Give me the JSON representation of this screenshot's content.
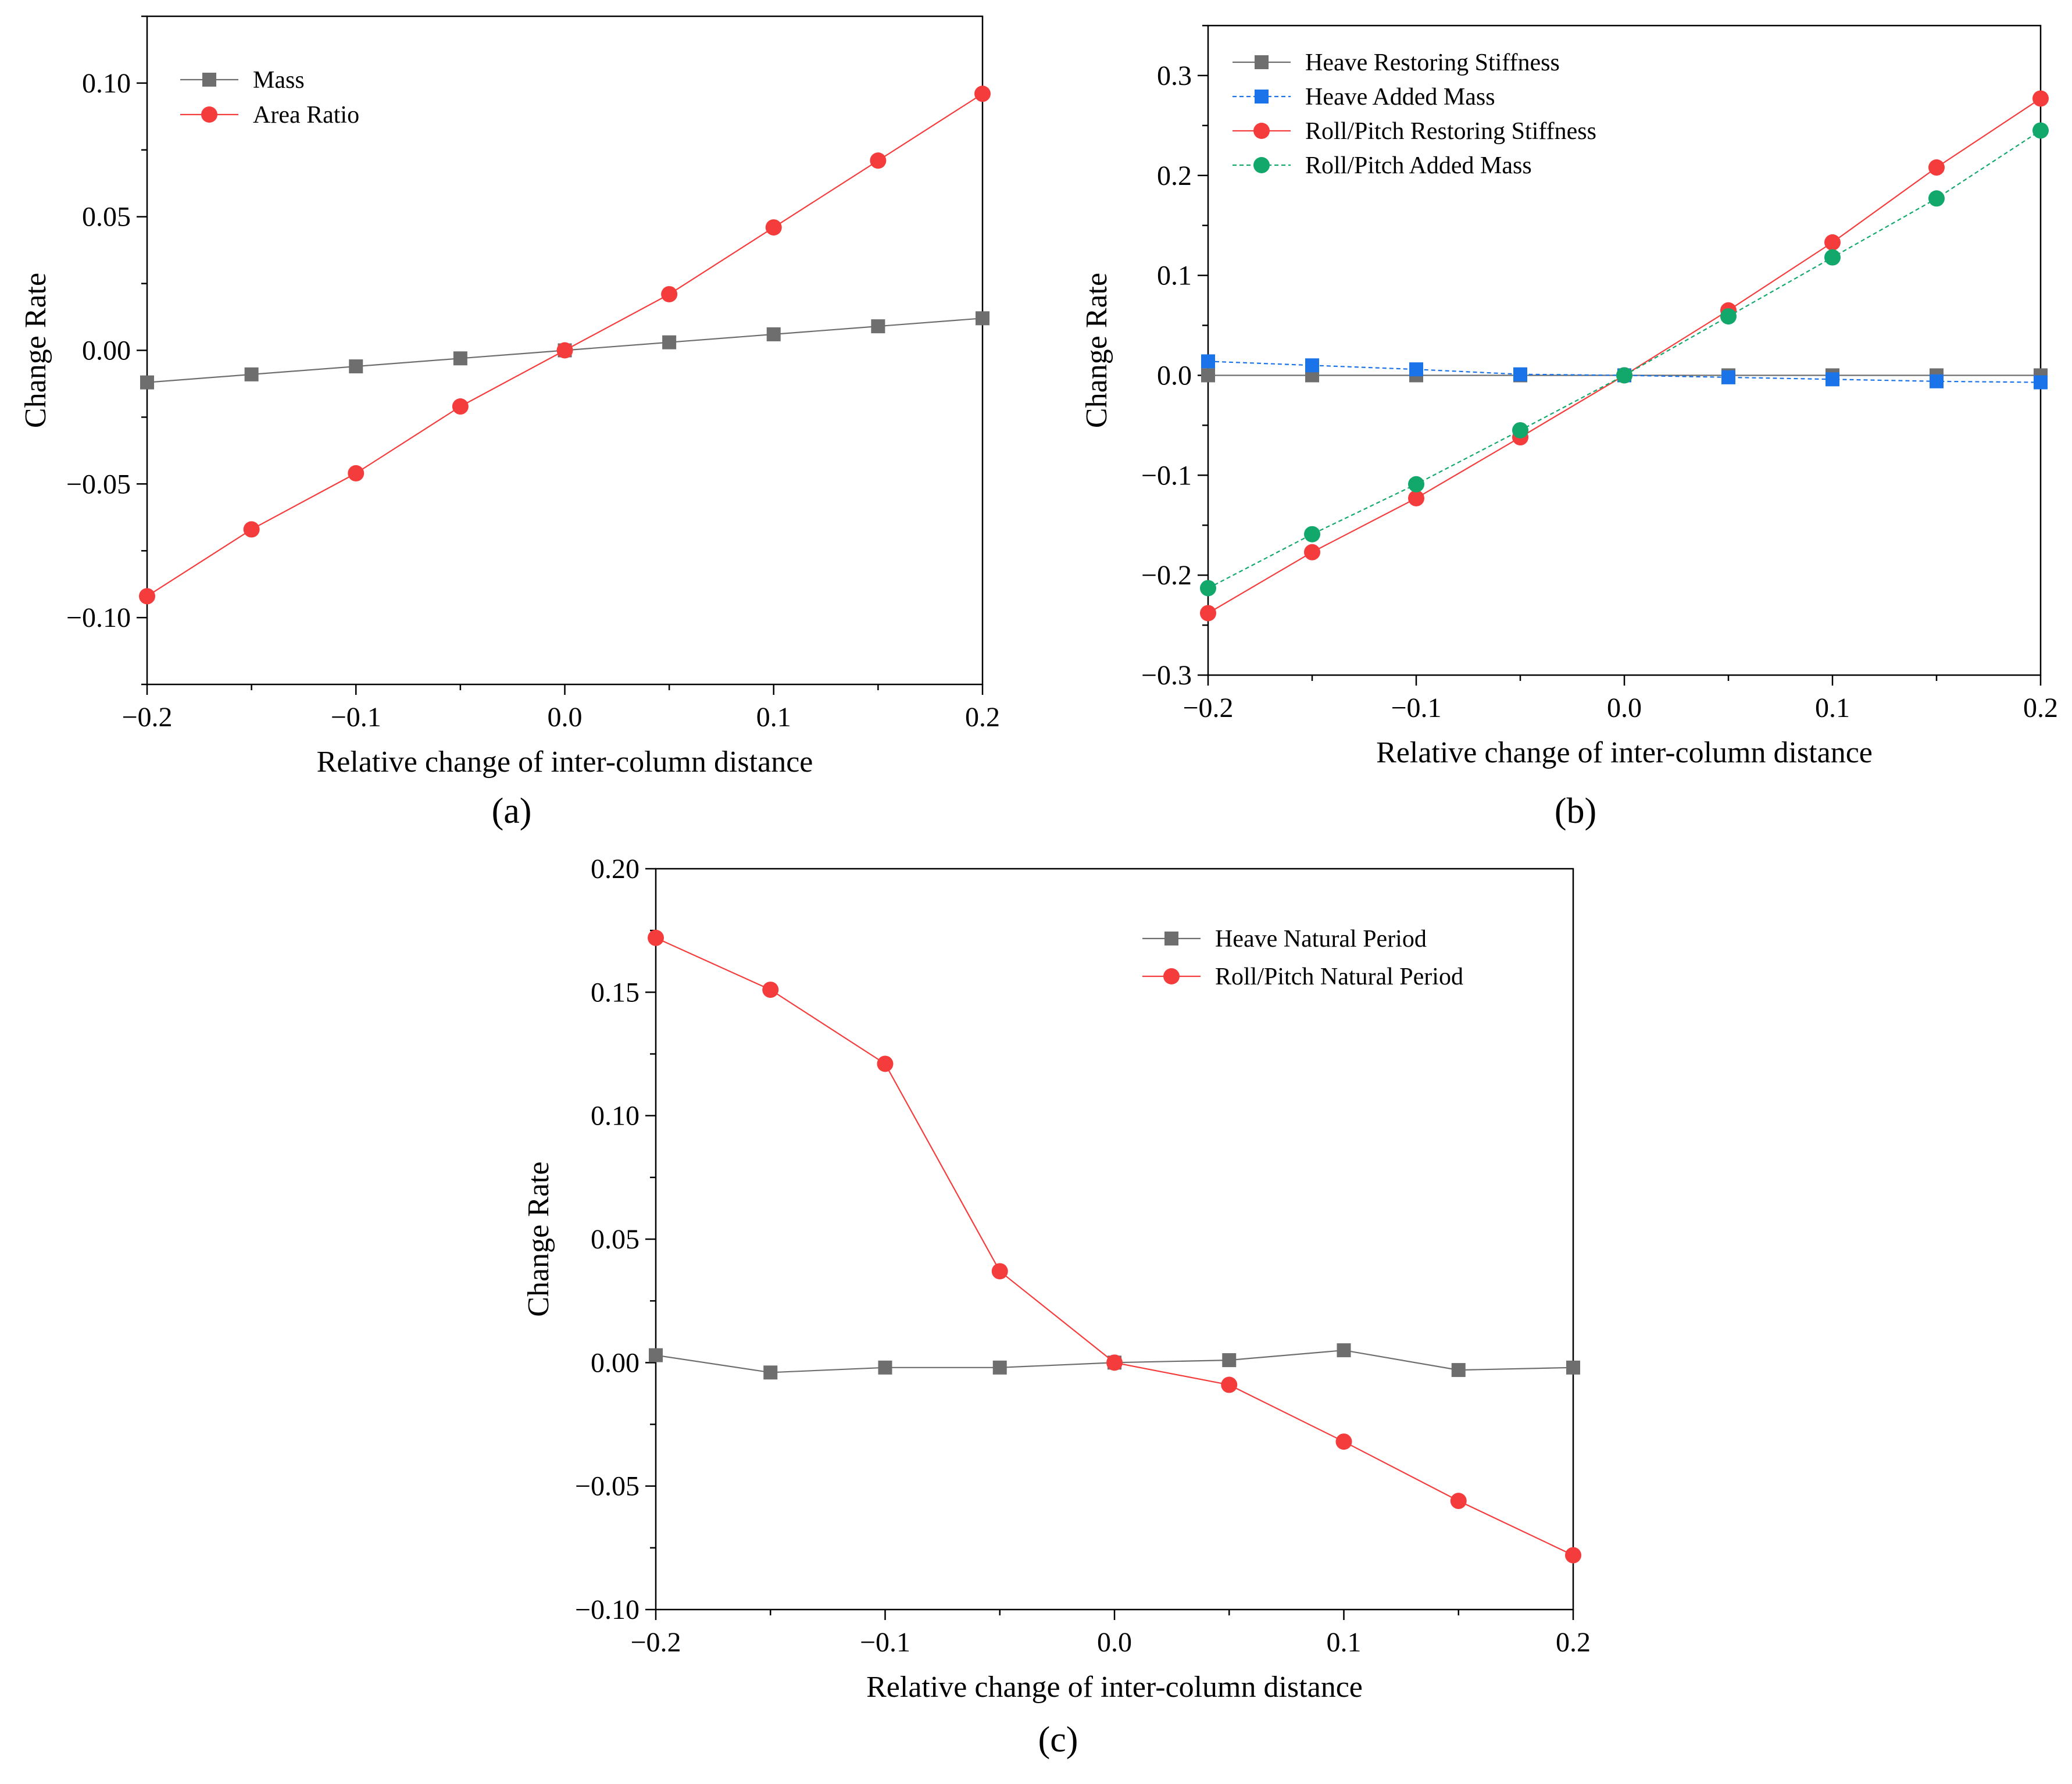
{
  "chart_data": [
    {
      "panel": "(a)",
      "type": "line",
      "title": "",
      "xlabel": "Relative change of inter-column distance",
      "ylabel": "Change Rate",
      "xlim": [
        -0.2,
        0.2
      ],
      "ylim": [
        -0.125,
        0.125
      ],
      "xticks": [
        -0.2,
        -0.1,
        0.0,
        0.1,
        0.2
      ],
      "xtick_labels": [
        "−0.2",
        "−0.1",
        "0.0",
        "0.1",
        "0.2"
      ],
      "yticks": [
        -0.1,
        -0.05,
        0.0,
        0.05,
        0.1
      ],
      "ytick_labels": [
        "−0.10",
        "−0.05",
        "0.00",
        "0.05",
        "0.10"
      ],
      "grid": false,
      "legend": "top-left",
      "x": [
        -0.2,
        -0.15,
        -0.1,
        -0.05,
        0.0,
        0.05,
        0.1,
        0.15,
        0.2
      ],
      "series": [
        {
          "name": "Mass",
          "marker": "square",
          "color": "#6e6e6e",
          "dash": "solid",
          "values": [
            -0.012,
            -0.009,
            -0.006,
            -0.003,
            0.0,
            0.003,
            0.006,
            0.009,
            0.012
          ]
        },
        {
          "name": "Area Ratio",
          "marker": "circle",
          "color": "#f53c3c",
          "dash": "solid",
          "values": [
            -0.092,
            -0.067,
            -0.046,
            -0.021,
            0.0,
            0.021,
            0.046,
            0.071,
            0.096
          ]
        }
      ]
    },
    {
      "panel": "(b)",
      "type": "line",
      "title": "",
      "xlabel": "Relative change of inter-column distance",
      "ylabel": "Change Rate",
      "xlim": [
        -0.2,
        0.2
      ],
      "ylim": [
        -0.3,
        0.35
      ],
      "xticks": [
        -0.2,
        -0.1,
        0.0,
        0.1,
        0.2
      ],
      "xtick_labels": [
        "−0.2",
        "−0.1",
        "0.0",
        "0.1",
        "0.2"
      ],
      "yticks": [
        -0.3,
        -0.2,
        -0.1,
        0.0,
        0.1,
        0.2,
        0.3
      ],
      "ytick_labels": [
        "−0.3",
        "−0.2",
        "−0.1",
        "0.0",
        "0.1",
        "0.2",
        "0.3"
      ],
      "grid": false,
      "legend": "top-left",
      "x": [
        -0.2,
        -0.15,
        -0.1,
        -0.05,
        0.0,
        0.05,
        0.1,
        0.15,
        0.2
      ],
      "series": [
        {
          "name": "Heave Restoring Stiffness",
          "marker": "square",
          "color": "#6e6e6e",
          "dash": "solid",
          "values": [
            0.0,
            0.0,
            0.0,
            0.0,
            0.0,
            0.0,
            0.0,
            0.0,
            0.0
          ]
        },
        {
          "name": "Heave Added Mass",
          "marker": "square",
          "color": "#1a73e8",
          "dash": "dashed",
          "values": [
            0.014,
            0.01,
            0.006,
            0.001,
            0.0,
            -0.002,
            -0.004,
            -0.006,
            -0.007
          ]
        },
        {
          "name": "Roll/Pitch Restoring Stiffness",
          "marker": "circle",
          "color": "#f53c3c",
          "dash": "solid",
          "values": [
            -0.238,
            -0.177,
            -0.123,
            -0.062,
            0.0,
            0.065,
            0.133,
            0.208,
            0.277
          ]
        },
        {
          "name": "Roll/Pitch Added Mass",
          "marker": "circle",
          "color": "#12a86b",
          "dash": "dashed",
          "values": [
            -0.213,
            -0.159,
            -0.109,
            -0.055,
            0.0,
            0.059,
            0.118,
            0.177,
            0.245
          ]
        }
      ]
    },
    {
      "panel": "(c)",
      "type": "line",
      "title": "",
      "xlabel": "Relative change of inter-column distance",
      "ylabel": "Change Rate",
      "xlim": [
        -0.2,
        0.2
      ],
      "ylim": [
        -0.1,
        0.2
      ],
      "xticks": [
        -0.2,
        -0.1,
        0.0,
        0.1,
        0.2
      ],
      "xtick_labels": [
        "−0.2",
        "−0.1",
        "0.0",
        "0.1",
        "0.2"
      ],
      "yticks": [
        -0.1,
        -0.05,
        0.0,
        0.05,
        0.1,
        0.15,
        0.2
      ],
      "ytick_labels": [
        "−0.10",
        "−0.05",
        "0.00",
        "0.05",
        "0.10",
        "0.15",
        "0.20"
      ],
      "grid": false,
      "legend": "top-right",
      "x": [
        -0.2,
        -0.15,
        -0.1,
        -0.05,
        0.0,
        0.05,
        0.1,
        0.15,
        0.2
      ],
      "series": [
        {
          "name": "Heave Natural Period",
          "marker": "square",
          "color": "#6e6e6e",
          "dash": "solid",
          "values": [
            0.003,
            -0.004,
            -0.002,
            -0.002,
            0.0,
            0.001,
            0.005,
            -0.003,
            -0.002
          ]
        },
        {
          "name": "Roll/Pitch Natural Period",
          "marker": "circle",
          "color": "#f53c3c",
          "dash": "solid",
          "values": [
            0.172,
            0.151,
            0.121,
            0.037,
            0.0,
            -0.009,
            -0.032,
            -0.056,
            -0.078
          ]
        }
      ]
    }
  ]
}
